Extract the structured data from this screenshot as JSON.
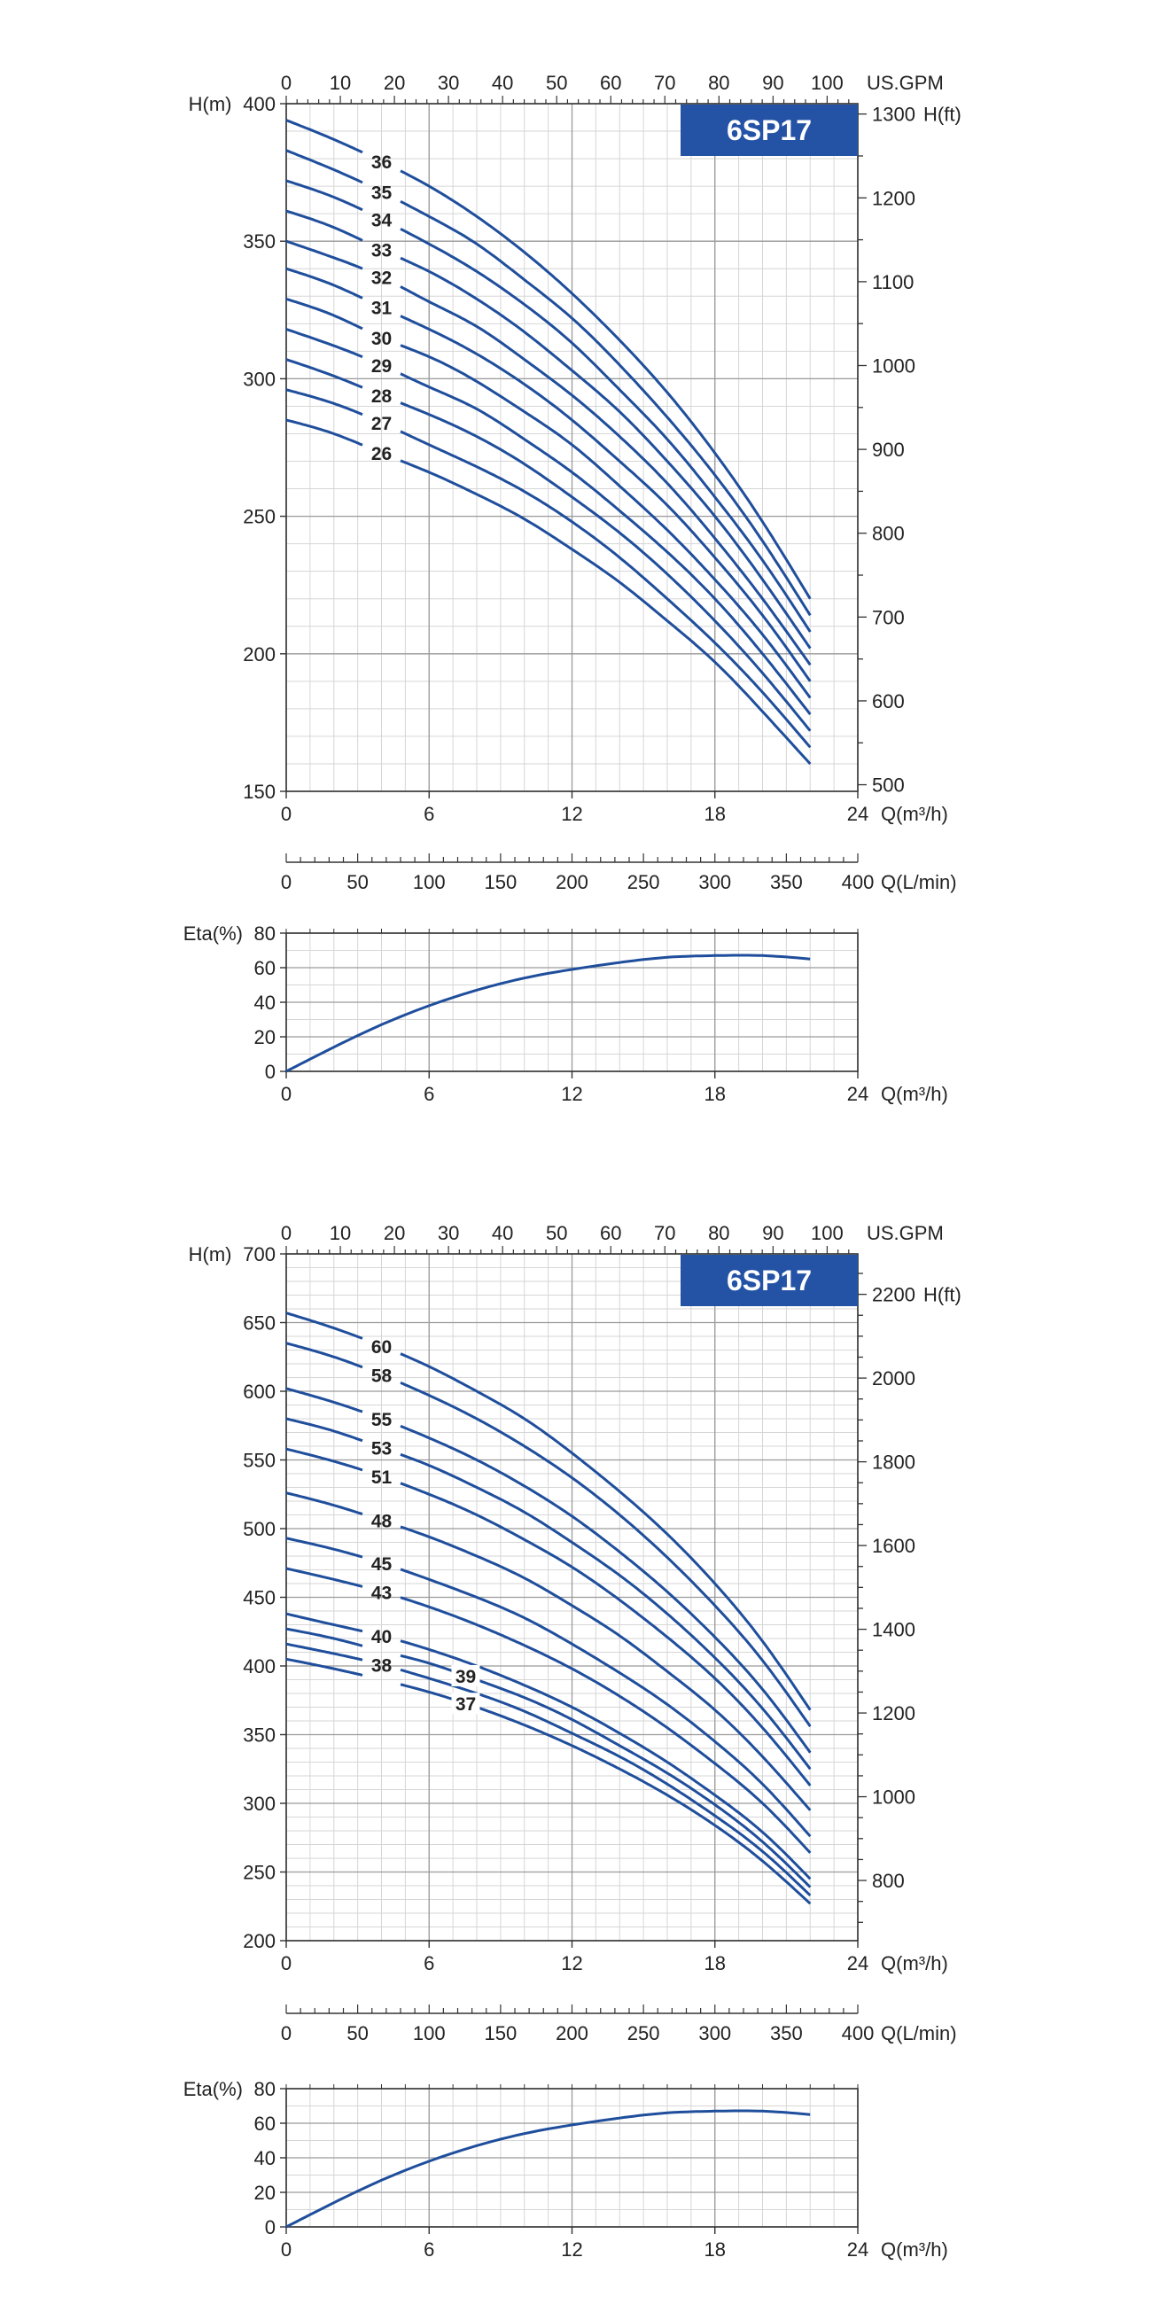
{
  "chart_data": [
    {
      "type": "line",
      "title": "6SP17",
      "x_unit": "Q(m³/h)",
      "y_unit": "H(m)",
      "y2_unit": "H(ft)",
      "top_unit": "US.GPM",
      "xlim": [
        0,
        24
      ],
      "ylim": [
        150,
        400
      ],
      "x_ticks": [
        0,
        6,
        12,
        18,
        24
      ],
      "y_ticks": [
        150,
        200,
        250,
        300,
        350,
        400
      ],
      "y2_ticks": [
        500,
        600,
        700,
        800,
        900,
        1000,
        1100,
        1200,
        1300
      ],
      "top_ticks": [
        0,
        10,
        20,
        30,
        40,
        50,
        60,
        70,
        80,
        90,
        100
      ],
      "color": "#1f4e9c",
      "x": [
        0,
        2,
        4,
        6,
        8,
        10,
        12,
        14,
        16,
        18,
        20,
        22
      ],
      "series": [
        {
          "name": "26",
          "values": [
            285,
            280,
            273,
            266,
            258,
            249,
            238,
            226,
            212,
            197,
            179,
            160
          ]
        },
        {
          "name": "27",
          "values": [
            296,
            291,
            284,
            276,
            268,
            259,
            248,
            235,
            220,
            204,
            186,
            166
          ]
        },
        {
          "name": "28",
          "values": [
            307,
            301,
            294,
            287,
            279,
            269,
            257,
            244,
            229,
            212,
            193,
            172
          ]
        },
        {
          "name": "29",
          "values": [
            318,
            312,
            305,
            297,
            289,
            278,
            266,
            252,
            237,
            220,
            200,
            178
          ]
        },
        {
          "name": "30",
          "values": [
            329,
            323,
            315,
            308,
            299,
            288,
            276,
            261,
            245,
            227,
            207,
            184
          ]
        },
        {
          "name": "31",
          "values": [
            340,
            334,
            326,
            318,
            309,
            298,
            285,
            270,
            254,
            235,
            214,
            190
          ]
        },
        {
          "name": "32",
          "values": [
            350,
            344,
            337,
            328,
            319,
            307,
            294,
            279,
            262,
            242,
            220,
            196
          ]
        },
        {
          "name": "33",
          "values": [
            361,
            355,
            347,
            339,
            329,
            317,
            303,
            288,
            270,
            250,
            227,
            202
          ]
        },
        {
          "name": "34",
          "values": [
            372,
            366,
            358,
            349,
            339,
            327,
            313,
            296,
            278,
            257,
            234,
            208
          ]
        },
        {
          "name": "35",
          "values": [
            383,
            376,
            368,
            359,
            349,
            336,
            322,
            305,
            286,
            265,
            241,
            214
          ]
        },
        {
          "name": "36",
          "values": [
            394,
            387,
            379,
            370,
            359,
            346,
            331,
            314,
            295,
            273,
            248,
            220
          ]
        }
      ]
    },
    {
      "type": "line",
      "x_unit": "Q(L/min)",
      "xlim": [
        0,
        400
      ],
      "x_ticks": [
        0,
        50,
        100,
        150,
        200,
        250,
        300,
        350,
        400
      ]
    },
    {
      "type": "line",
      "y_unit": "Eta(%)",
      "x_unit": "Q(m³/h)",
      "xlim": [
        0,
        24
      ],
      "ylim": [
        0,
        80
      ],
      "x_ticks": [
        0,
        6,
        12,
        18,
        24
      ],
      "y_ticks": [
        0,
        20,
        40,
        60,
        80
      ],
      "color": "#1f4e9c",
      "x": [
        0,
        2,
        4,
        6,
        8,
        10,
        12,
        14,
        16,
        18,
        20,
        22
      ],
      "series": [
        {
          "values": [
            0,
            14,
            27,
            38,
            47,
            54,
            59,
            63,
            66,
            67,
            67,
            65
          ]
        }
      ]
    },
    {
      "type": "line",
      "title": "6SP17",
      "x_unit": "Q(m³/h)",
      "y_unit": "H(m)",
      "y2_unit": "H(ft)",
      "top_unit": "US.GPM",
      "xlim": [
        0,
        24
      ],
      "ylim": [
        200,
        700
      ],
      "x_ticks": [
        0,
        6,
        12,
        18,
        24
      ],
      "y_ticks": [
        200,
        250,
        300,
        350,
        400,
        450,
        500,
        550,
        600,
        650,
        700
      ],
      "y2_ticks": [
        800,
        1000,
        1200,
        1400,
        1600,
        1800,
        2000,
        2200
      ],
      "top_ticks": [
        0,
        10,
        20,
        30,
        40,
        50,
        60,
        70,
        80,
        90,
        100
      ],
      "color": "#1f4e9c",
      "x": [
        0,
        2,
        4,
        6,
        8,
        10,
        12,
        14,
        16,
        18,
        20,
        22
      ],
      "series": [
        {
          "name": "37",
          "values": [
            405,
            398,
            390,
            381,
            370,
            357,
            342,
            325,
            306,
            284,
            258,
            227
          ]
        },
        {
          "name": "38",
          "values": [
            416,
            409,
            401,
            391,
            380,
            367,
            351,
            334,
            314,
            291,
            265,
            233
          ]
        },
        {
          "name": "39",
          "values": [
            427,
            420,
            411,
            402,
            390,
            377,
            361,
            342,
            322,
            299,
            272,
            239
          ]
        },
        {
          "name": "40",
          "values": [
            438,
            430,
            422,
            412,
            400,
            386,
            370,
            351,
            330,
            306,
            279,
            245
          ]
        },
        {
          "name": "43",
          "values": [
            471,
            463,
            454,
            443,
            430,
            415,
            398,
            378,
            355,
            329,
            300,
            264
          ]
        },
        {
          "name": "45",
          "values": [
            493,
            485,
            475,
            463,
            450,
            435,
            416,
            395,
            372,
            345,
            314,
            276
          ]
        },
        {
          "name": "48",
          "values": [
            526,
            517,
            506,
            494,
            480,
            464,
            444,
            422,
            396,
            368,
            334,
            295
          ]
        },
        {
          "name": "51",
          "values": [
            558,
            549,
            538,
            525,
            510,
            492,
            472,
            448,
            421,
            391,
            355,
            313
          ]
        },
        {
          "name": "53",
          "values": [
            580,
            571,
            559,
            546,
            530,
            512,
            490,
            466,
            438,
            406,
            369,
            325
          ]
        },
        {
          "name": "55",
          "values": [
            602,
            592,
            580,
            566,
            550,
            531,
            509,
            483,
            454,
            421,
            383,
            337
          ]
        },
        {
          "name": "58",
          "values": [
            635,
            625,
            612,
            597,
            580,
            560,
            537,
            510,
            479,
            444,
            404,
            356
          ]
        },
        {
          "name": "60",
          "values": [
            657,
            646,
            633,
            618,
            600,
            580,
            555,
            527,
            496,
            460,
            418,
            368
          ]
        }
      ]
    },
    {
      "type": "line",
      "x_unit": "Q(L/min)",
      "xlim": [
        0,
        400
      ],
      "x_ticks": [
        0,
        50,
        100,
        150,
        200,
        250,
        300,
        350,
        400
      ]
    },
    {
      "type": "line",
      "y_unit": "Eta(%)",
      "x_unit": "Q(m³/h)",
      "xlim": [
        0,
        24
      ],
      "ylim": [
        0,
        80
      ],
      "x_ticks": [
        0,
        6,
        12,
        18,
        24
      ],
      "y_ticks": [
        0,
        20,
        40,
        60,
        80
      ],
      "color": "#1f4e9c",
      "x": [
        0,
        2,
        4,
        6,
        8,
        10,
        12,
        14,
        16,
        18,
        20,
        22
      ],
      "series": [
        {
          "values": [
            0,
            14,
            27,
            38,
            47,
            54,
            59,
            63,
            66,
            67,
            67,
            65
          ]
        }
      ]
    }
  ]
}
